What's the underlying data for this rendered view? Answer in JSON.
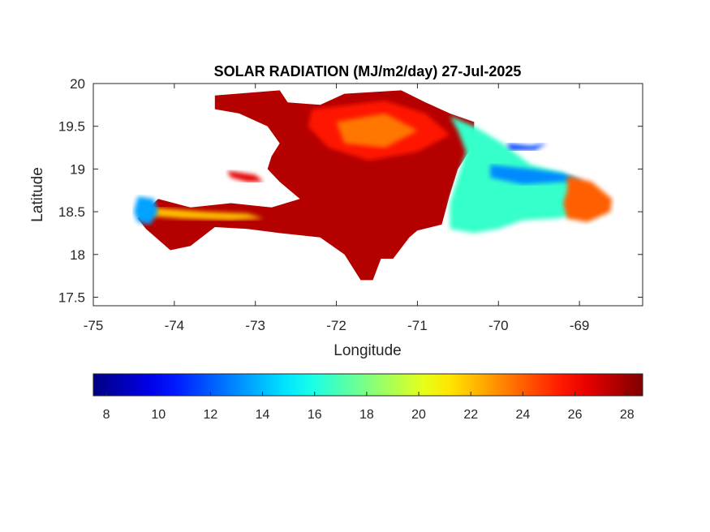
{
  "chart_data": {
    "type": "heatmap",
    "title": "SOLAR RADIATION (MJ/m2/day) 27-Jul-2025",
    "xlabel": "Longitude",
    "ylabel": "Latitude",
    "xlim": [
      -75,
      -68.22
    ],
    "ylim": [
      17.4,
      20
    ],
    "x_ticks": [
      -75,
      -74,
      -73,
      -72,
      -71,
      -70,
      -69
    ],
    "x_tick_labels": [
      "-75",
      "-74",
      "-73",
      "-72",
      "-71",
      "-70",
      "-69"
    ],
    "y_ticks": [
      17.5,
      18,
      18.5,
      19,
      19.5,
      20
    ],
    "y_tick_labels": [
      "17.5",
      "18",
      "18.5",
      "19",
      "19.5",
      "20"
    ],
    "colorbar": {
      "orientation": "horizontal",
      "colormap": "jet",
      "range": [
        7.5,
        28.6
      ],
      "ticks": [
        8,
        10,
        12,
        14,
        16,
        18,
        20,
        22,
        24,
        26,
        28
      ],
      "tick_labels": [
        "8",
        "10",
        "12",
        "14",
        "16",
        "18",
        "20",
        "22",
        "24",
        "26",
        "28"
      ]
    },
    "regions": [
      {
        "name": "",
        "value": 27.5,
        "polygon": [
          [
            -73.5,
            19.86
          ],
          [
            -72.7,
            19.92
          ],
          [
            -72.6,
            19.78
          ],
          [
            -72.2,
            19.75
          ],
          [
            -71.9,
            19.88
          ],
          [
            -71.2,
            19.92
          ],
          [
            -70.9,
            19.78
          ],
          [
            -70.6,
            19.65
          ],
          [
            -70.3,
            19.55
          ],
          [
            -70.3,
            19.3
          ],
          [
            -70.5,
            19.0
          ],
          [
            -70.6,
            18.7
          ],
          [
            -70.7,
            18.35
          ],
          [
            -71.0,
            18.28
          ],
          [
            -71.1,
            18.2
          ],
          [
            -71.3,
            17.95
          ],
          [
            -71.45,
            17.95
          ],
          [
            -71.55,
            17.7
          ],
          [
            -71.7,
            17.7
          ],
          [
            -71.9,
            18.0
          ],
          [
            -72.2,
            18.2
          ],
          [
            -72.7,
            18.25
          ],
          [
            -73.1,
            18.3
          ],
          [
            -73.5,
            18.32
          ],
          [
            -73.8,
            18.1
          ],
          [
            -74.05,
            18.05
          ],
          [
            -74.35,
            18.3
          ],
          [
            -74.45,
            18.42
          ],
          [
            -74.2,
            18.65
          ],
          [
            -73.8,
            18.55
          ],
          [
            -73.3,
            18.6
          ],
          [
            -72.8,
            18.55
          ],
          [
            -72.45,
            18.65
          ],
          [
            -72.7,
            18.85
          ],
          [
            -72.85,
            19.0
          ],
          [
            -72.8,
            19.15
          ],
          [
            -72.7,
            19.3
          ],
          [
            -72.85,
            19.5
          ],
          [
            -73.2,
            19.65
          ],
          [
            -73.5,
            19.7
          ]
        ]
      },
      {
        "name": "",
        "value": 25.5,
        "polygon": [
          [
            -72.3,
            19.7
          ],
          [
            -71.4,
            19.8
          ],
          [
            -70.9,
            19.65
          ],
          [
            -70.6,
            19.4
          ],
          [
            -71.0,
            19.2
          ],
          [
            -71.6,
            19.1
          ],
          [
            -72.1,
            19.25
          ],
          [
            -72.35,
            19.5
          ]
        ]
      },
      {
        "name": "",
        "value": 23.5,
        "polygon": [
          [
            -72.0,
            19.55
          ],
          [
            -71.4,
            19.65
          ],
          [
            -71.0,
            19.45
          ],
          [
            -71.4,
            19.25
          ],
          [
            -71.9,
            19.3
          ]
        ]
      },
      {
        "name": "",
        "value": 22.0,
        "polygon": [
          [
            -74.3,
            18.55
          ],
          [
            -73.6,
            18.5
          ],
          [
            -73.1,
            18.48
          ],
          [
            -72.9,
            18.42
          ],
          [
            -73.3,
            18.4
          ],
          [
            -73.9,
            18.42
          ],
          [
            -74.3,
            18.45
          ]
        ]
      },
      {
        "name": "",
        "value": 16.5,
        "polygon": [
          [
            -70.6,
            19.62
          ],
          [
            -70.3,
            19.5
          ],
          [
            -69.95,
            19.3
          ],
          [
            -69.6,
            19.05
          ],
          [
            -69.2,
            18.95
          ],
          [
            -69.0,
            18.85
          ],
          [
            -68.9,
            18.7
          ],
          [
            -69.1,
            18.45
          ],
          [
            -69.3,
            18.42
          ],
          [
            -69.7,
            18.4
          ],
          [
            -70.0,
            18.3
          ],
          [
            -70.3,
            18.25
          ],
          [
            -70.6,
            18.3
          ],
          [
            -70.6,
            18.6
          ],
          [
            -70.5,
            18.9
          ],
          [
            -70.4,
            19.2
          ],
          [
            -70.5,
            19.45
          ]
        ]
      },
      {
        "name": "",
        "value": 13.0,
        "polygon": [
          [
            -70.1,
            19.05
          ],
          [
            -69.6,
            19.0
          ],
          [
            -69.2,
            18.95
          ],
          [
            -68.95,
            18.85
          ],
          [
            -69.2,
            18.85
          ],
          [
            -69.7,
            18.82
          ],
          [
            -70.1,
            18.9
          ]
        ]
      },
      {
        "name": "",
        "value": 11.5,
        "polygon": [
          [
            -69.9,
            19.3
          ],
          [
            -69.6,
            19.27
          ],
          [
            -69.4,
            19.3
          ],
          [
            -69.55,
            19.22
          ],
          [
            -69.85,
            19.22
          ]
        ]
      },
      {
        "name": "",
        "value": 24.0,
        "polygon": [
          [
            -69.15,
            18.92
          ],
          [
            -68.85,
            18.85
          ],
          [
            -68.6,
            18.65
          ],
          [
            -68.62,
            18.5
          ],
          [
            -68.9,
            18.38
          ],
          [
            -69.15,
            18.42
          ],
          [
            -69.2,
            18.6
          ],
          [
            -69.15,
            18.75
          ]
        ]
      },
      {
        "name": "",
        "value": 13.5,
        "polygon": [
          [
            -74.45,
            18.68
          ],
          [
            -74.25,
            18.65
          ],
          [
            -74.2,
            18.5
          ],
          [
            -74.3,
            18.35
          ],
          [
            -74.45,
            18.38
          ],
          [
            -74.5,
            18.5
          ]
        ]
      },
      {
        "name": "",
        "value": 26.5,
        "polygon": [
          [
            -73.35,
            18.98
          ],
          [
            -73.0,
            18.93
          ],
          [
            -72.9,
            18.85
          ],
          [
            -73.1,
            18.85
          ],
          [
            -73.3,
            18.9
          ]
        ]
      }
    ]
  }
}
